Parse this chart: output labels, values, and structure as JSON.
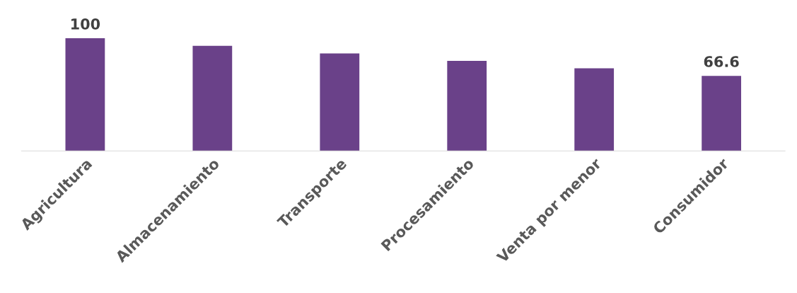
{
  "chart_data": {
    "type": "bar",
    "categories": [
      "Agricultura",
      "Almacenamiento",
      "Transporte",
      "Procesamiento",
      "Venta por menor",
      "Consumidor"
    ],
    "values": [
      100,
      93.3,
      86.6,
      79.9,
      73.3,
      66.6
    ],
    "value_labels": [
      "100",
      null,
      null,
      null,
      null,
      "66.6"
    ],
    "color": "#6a4189",
    "tick_labels": "x",
    "grid": false,
    "legend": false
  }
}
